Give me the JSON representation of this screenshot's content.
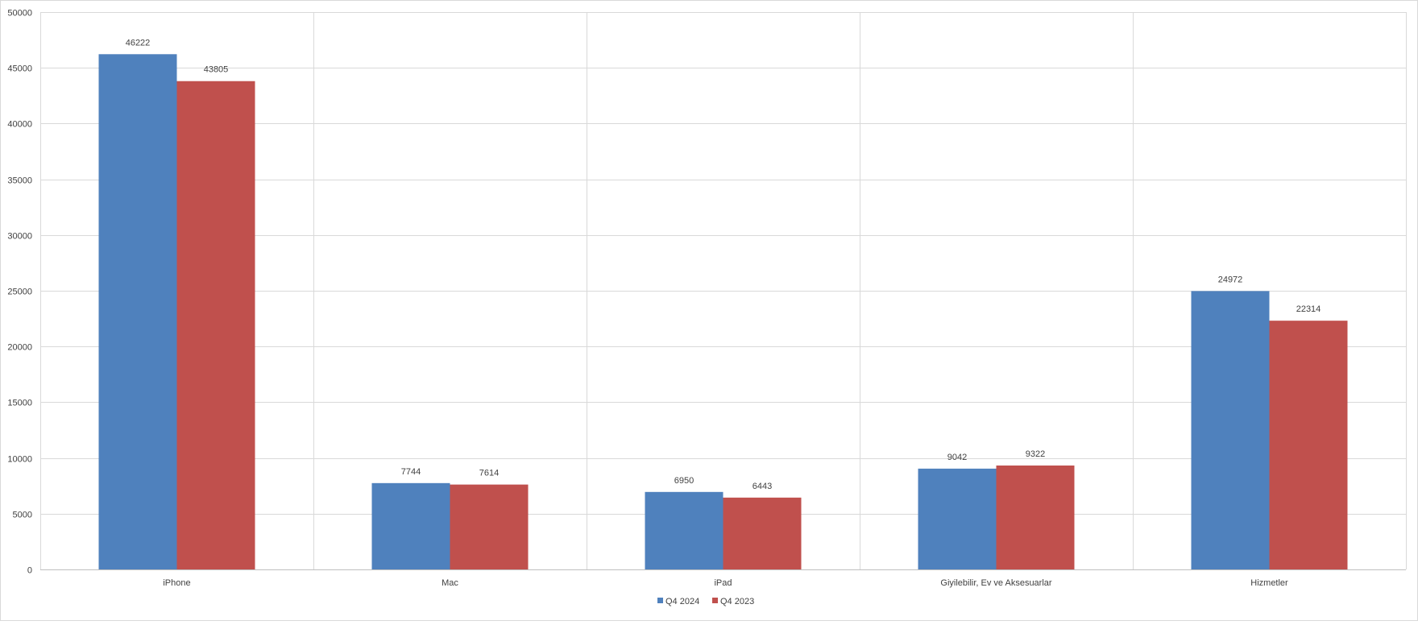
{
  "chart_data": {
    "type": "bar",
    "title": "",
    "xlabel": "",
    "ylabel": "",
    "categories": [
      "iPhone",
      "Mac",
      "iPad",
      "Giyilebilir, Ev ve Aksesuarlar",
      "Hizmetler"
    ],
    "series": [
      {
        "name": "Q4 2024",
        "color": "#4f81bd",
        "values": [
          46222,
          7744,
          6950,
          9042,
          24972
        ]
      },
      {
        "name": "Q4 2023",
        "color": "#c0504d",
        "values": [
          43805,
          7614,
          6443,
          9322,
          22314
        ]
      }
    ],
    "ylim": [
      0,
      50000
    ],
    "yticks": [
      0,
      5000,
      10000,
      15000,
      20000,
      25000,
      30000,
      35000,
      40000,
      45000,
      50000
    ],
    "grid": true,
    "legend_position": "bottom",
    "data_labels": true,
    "colors": {
      "gridline": "#d9d9d9",
      "axis_text": "#404040",
      "border": "#d9d9d9"
    }
  }
}
